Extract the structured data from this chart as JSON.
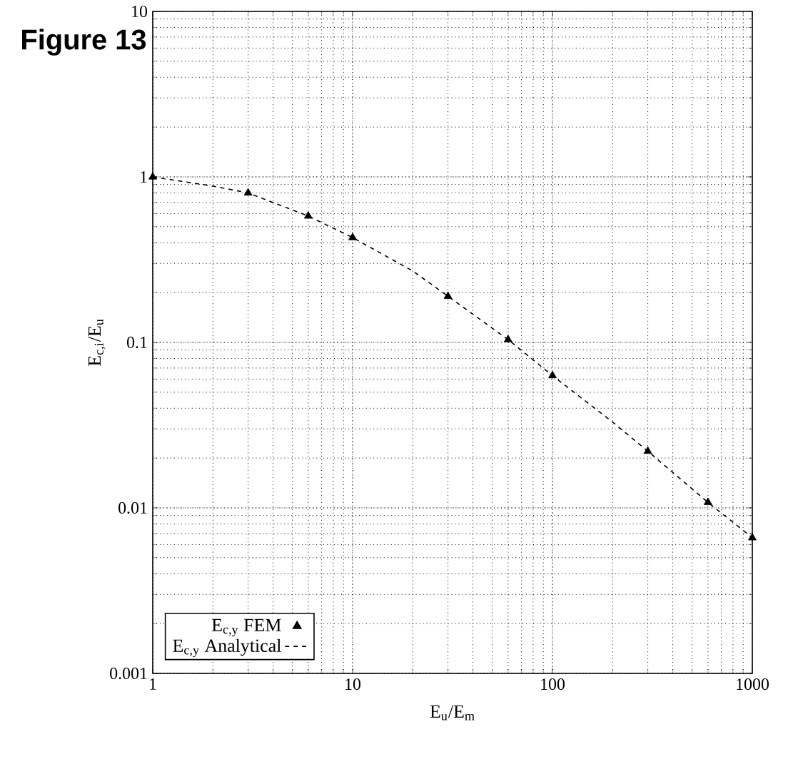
{
  "chart_data": {
    "type": "scatter",
    "title": "Figure 13",
    "xlabel": "E$_{u}$/E$_{m}$",
    "ylabel": "E$_{c,i}$/E$_{u}$",
    "log": "xy",
    "grid": true,
    "legend": "bottom left",
    "xlim": [
      1,
      1000
    ],
    "ylim": [
      0.001,
      10
    ],
    "xticks": [
      1,
      10,
      100,
      1000
    ],
    "yticks": [
      0.001,
      0.01,
      0.1,
      1,
      10
    ],
    "series": [
      {
        "name": "E$_{c,y}$ FEM",
        "marker": "triangle",
        "color": "#000000",
        "x": [
          1,
          3,
          6,
          10,
          30,
          60,
          100,
          300,
          600,
          1000
        ],
        "values": [
          1.0,
          0.8,
          0.58,
          0.43,
          0.19,
          0.104,
          0.063,
          0.022,
          0.0108,
          0.0066
        ]
      },
      {
        "name": "E$_{c,y}$ Analytical",
        "type": "line",
        "marker": "none",
        "line_style": "dashed",
        "color": "#000000",
        "x": [
          1,
          2,
          3,
          6,
          10,
          20,
          30,
          60,
          100,
          200,
          300,
          600,
          1000
        ],
        "values": [
          1.0,
          0.88,
          0.8,
          0.58,
          0.43,
          0.27,
          0.19,
          0.104,
          0.063,
          0.033,
          0.022,
          0.0108,
          0.0066
        ]
      }
    ]
  }
}
